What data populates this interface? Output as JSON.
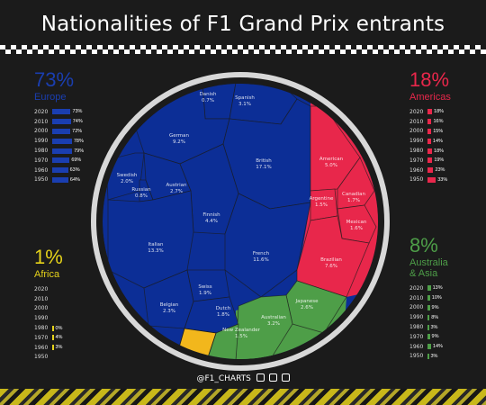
{
  "title": "Nationalities of F1 Grand Prix entrants",
  "credit": "@F1_CHARTS",
  "colors": {
    "europe": "#0c2e96",
    "americas": "#e8274b",
    "africa": "#f2b71c",
    "asia": "#4e9e48",
    "border": "#1b1b1b",
    "ring": "#d8d8d8"
  },
  "regions": {
    "europe": {
      "pct": "73%",
      "name": "Europe",
      "color": "#1a3eb0",
      "rows": [
        {
          "year": "2020",
          "value": 73,
          "label": "73%"
        },
        {
          "year": "2010",
          "value": 74,
          "label": "74%"
        },
        {
          "year": "2000",
          "value": 72,
          "label": "72%"
        },
        {
          "year": "1990",
          "value": 78,
          "label": "78%"
        },
        {
          "year": "1980",
          "value": 79,
          "label": "79%"
        },
        {
          "year": "1970",
          "value": 69,
          "label": "69%"
        },
        {
          "year": "1960",
          "value": 63,
          "label": "63%"
        },
        {
          "year": "1950",
          "value": 64,
          "label": "64%"
        }
      ]
    },
    "americas": {
      "pct": "18%",
      "name": "Americas",
      "color": "#e8274b",
      "rows": [
        {
          "year": "2020",
          "value": 18,
          "label": "18%"
        },
        {
          "year": "2010",
          "value": 16,
          "label": "16%"
        },
        {
          "year": "2000",
          "value": 15,
          "label": "15%"
        },
        {
          "year": "1990",
          "value": 14,
          "label": "14%"
        },
        {
          "year": "1980",
          "value": 18,
          "label": "18%"
        },
        {
          "year": "1970",
          "value": 19,
          "label": "19%"
        },
        {
          "year": "1960",
          "value": 23,
          "label": "23%"
        },
        {
          "year": "1950",
          "value": 33,
          "label": "33%"
        }
      ]
    },
    "africa": {
      "pct": "1%",
      "name": "Africa",
      "color": "#e6d31a",
      "rows": [
        {
          "year": "2020",
          "value": 0,
          "label": ""
        },
        {
          "year": "2010",
          "value": 0,
          "label": ""
        },
        {
          "year": "2000",
          "value": 0,
          "label": ""
        },
        {
          "year": "1990",
          "value": 0,
          "label": ""
        },
        {
          "year": "1980",
          "value": 0.5,
          "label": "0%"
        },
        {
          "year": "1970",
          "value": 4,
          "label": "4%"
        },
        {
          "year": "1960",
          "value": 3,
          "label": "3%"
        },
        {
          "year": "1950",
          "value": 0,
          "label": ""
        }
      ]
    },
    "asia": {
      "pct": "8%",
      "name": "Australia\n& Asia",
      "color": "#4e9e48",
      "rows": [
        {
          "year": "2020",
          "value": 13,
          "label": "13%"
        },
        {
          "year": "2010",
          "value": 10,
          "label": "10%"
        },
        {
          "year": "2000",
          "value": 9,
          "label": "9%"
        },
        {
          "year": "1990",
          "value": 8,
          "label": "8%"
        },
        {
          "year": "1980",
          "value": 3,
          "label": "3%"
        },
        {
          "year": "1970",
          "value": 9,
          "label": "9%"
        },
        {
          "year": "1960",
          "value": 14,
          "label": "14%"
        },
        {
          "year": "1950",
          "value": 3,
          "label": "3%"
        }
      ]
    }
  },
  "chart_data": {
    "type": "voronoi treemap",
    "title": "Nationalities of F1 Grand Prix entrants",
    "cells": [
      {
        "name": "Danish",
        "label": "0.7%",
        "value": 0.7,
        "region": "europe"
      },
      {
        "name": "Spanish",
        "label": "3.1%",
        "value": 3.1,
        "region": "europe"
      },
      {
        "name": "German",
        "label": "9.2%",
        "value": 9.2,
        "region": "europe"
      },
      {
        "name": "British",
        "label": "17.1%",
        "value": 17.1,
        "region": "europe"
      },
      {
        "name": "Swedish",
        "label": "2.0%",
        "value": 2.0,
        "region": "europe"
      },
      {
        "name": "Russian",
        "label": "0.8%",
        "value": 0.8,
        "region": "europe"
      },
      {
        "name": "Austrian",
        "label": "2.7%",
        "value": 2.7,
        "region": "europe"
      },
      {
        "name": "Finnish",
        "label": "4.4%",
        "value": 4.4,
        "region": "europe"
      },
      {
        "name": "Italian",
        "label": "13.3%",
        "value": 13.3,
        "region": "europe"
      },
      {
        "name": "French",
        "label": "11.6%",
        "value": 11.6,
        "region": "europe"
      },
      {
        "name": "Swiss",
        "label": "1.9%",
        "value": 1.9,
        "region": "europe"
      },
      {
        "name": "Belgian",
        "label": "2.3%",
        "value": 2.3,
        "region": "europe"
      },
      {
        "name": "Dutch",
        "label": "1.8%",
        "value": 1.8,
        "region": "europe"
      },
      {
        "name": "American",
        "label": "5.0%",
        "value": 5.0,
        "region": "americas"
      },
      {
        "name": "Argentine",
        "label": "1.5%",
        "value": 1.5,
        "region": "americas"
      },
      {
        "name": "Canadian",
        "label": "1.7%",
        "value": 1.7,
        "region": "americas"
      },
      {
        "name": "Mexican",
        "label": "1.6%",
        "value": 1.6,
        "region": "americas"
      },
      {
        "name": "Brazilian",
        "label": "7.6%",
        "value": 7.6,
        "region": "americas"
      },
      {
        "name": "Japanese",
        "label": "2.6%",
        "value": 2.6,
        "region": "asia"
      },
      {
        "name": "Australian",
        "label": "3.2%",
        "value": 3.2,
        "region": "asia"
      },
      {
        "name": "New Zealander",
        "label": "1.5%",
        "value": 1.5,
        "region": "asia"
      }
    ]
  }
}
